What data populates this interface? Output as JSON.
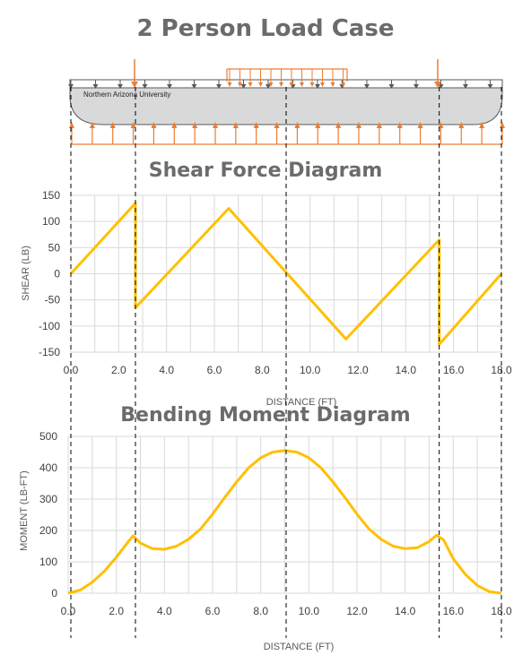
{
  "page_title": "2 Person Load Case",
  "boat_label": "Northern Arizona University",
  "colors": {
    "orange": "#ED7D31",
    "yellow": "#FFC000",
    "gray_arrow": "#595959",
    "hull_fill": "#D9D9D9",
    "grid": "#D9D9D9",
    "title_gray": "#6B6B6B"
  },
  "chart_data": [
    {
      "type": "line",
      "title": "Shear Force Diagram",
      "xlabel": "DISTANCE (FT)",
      "ylabel": "SHEAR (LB)",
      "xlim": [
        0,
        18
      ],
      "ylim": [
        -150,
        150
      ],
      "x_ticks": [
        "0.0",
        "2.0",
        "4.0",
        "6.0",
        "8.0",
        "10.0",
        "12.0",
        "14.0",
        "16.0",
        "18.0"
      ],
      "y_ticks": [
        "150",
        "100",
        "50",
        "0",
        "-50",
        "-100",
        "-150"
      ],
      "grid": true,
      "series": [
        {
          "x": [
            0,
            2.7,
            2.7,
            6.6,
            11.5,
            15.4,
            15.4,
            18
          ],
          "y": [
            0,
            135,
            -65,
            125,
            -125,
            65,
            -135,
            0
          ]
        }
      ]
    },
    {
      "type": "line",
      "title": "Bending Moment Diagram",
      "xlabel": "DISTANCE (FT)",
      "ylabel": "MOMENT (LB-FT)",
      "xlim": [
        0,
        18
      ],
      "ylim": [
        0,
        500
      ],
      "x_ticks": [
        "0.0",
        "2.0",
        "4.0",
        "6.0",
        "8.0",
        "10.0",
        "12.0",
        "14.0",
        "16.0",
        "18.0"
      ],
      "y_ticks": [
        "500",
        "400",
        "300",
        "200",
        "100",
        "0"
      ],
      "grid": true,
      "series": [
        {
          "x": [
            0,
            0.5,
            1.0,
            1.5,
            2.0,
            2.5,
            2.7,
            3.0,
            3.5,
            4.0,
            4.5,
            5.0,
            5.5,
            6.0,
            6.5,
            7.0,
            7.5,
            8.0,
            8.5,
            9.0,
            9.5,
            10.0,
            10.5,
            11.0,
            11.5,
            12.0,
            12.5,
            13.0,
            13.5,
            14.0,
            14.5,
            15.0,
            15.3,
            15.6,
            16.0,
            16.5,
            17.0,
            17.5,
            18.0
          ],
          "y": [
            0,
            10,
            35,
            70,
            115,
            165,
            183,
            160,
            142,
            140,
            150,
            172,
            205,
            252,
            305,
            355,
            400,
            432,
            450,
            455,
            450,
            432,
            400,
            355,
            305,
            252,
            205,
            172,
            150,
            142,
            145,
            165,
            185,
            170,
            110,
            60,
            25,
            5,
            0
          ]
        }
      ]
    }
  ]
}
